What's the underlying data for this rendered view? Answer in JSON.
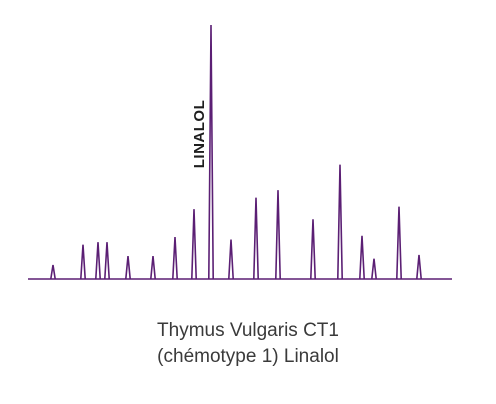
{
  "caption": {
    "line1": "Thymus Vulgaris CT1",
    "line2": "(chémotype 1) Linalol"
  },
  "colors": {
    "peak": "#5b1f74",
    "text": "#3a3a3a"
  },
  "chart_data": {
    "type": "line",
    "title": "",
    "xlabel": "",
    "ylabel": "",
    "ylim": [
      0,
      100
    ],
    "grid": false,
    "legend": "none",
    "peaks": [
      {
        "position": 1,
        "height": 5.5
      },
      {
        "position": 2,
        "height": 13.5
      },
      {
        "position": 3,
        "height": 14.5
      },
      {
        "position": 4,
        "height": 14.5
      },
      {
        "position": 5,
        "height": 9
      },
      {
        "position": 6,
        "height": 9
      },
      {
        "position": 7,
        "height": 16.5
      },
      {
        "position": 8,
        "height": 27.5
      },
      {
        "position": 9,
        "height": 100
      },
      {
        "position": 10,
        "height": 15.5
      },
      {
        "position": 11,
        "height": 32
      },
      {
        "position": 12,
        "height": 35
      },
      {
        "position": 13,
        "height": 23.5
      },
      {
        "position": 14,
        "height": 45
      },
      {
        "position": 15,
        "height": 17
      },
      {
        "position": 16,
        "height": 8
      },
      {
        "position": 17,
        "height": 28.5
      },
      {
        "position": 18,
        "height": 9.5
      }
    ],
    "annotations": [
      {
        "peak_position": 9,
        "text": "LINALOL"
      }
    ]
  }
}
